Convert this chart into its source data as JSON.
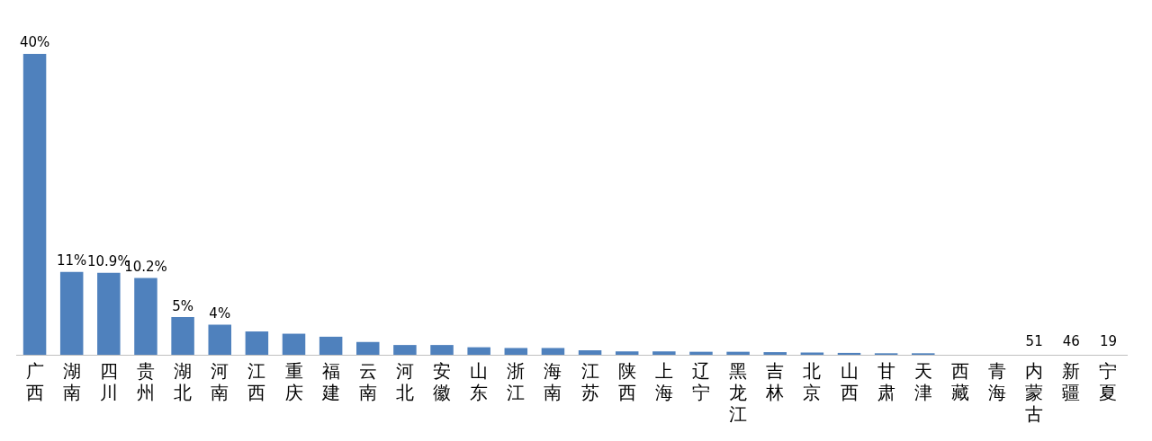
{
  "chart_data": {
    "type": "bar",
    "categories": [
      "广西",
      "湖南",
      "四川",
      "贵州",
      "湖北",
      "河南",
      "江西",
      "重庆",
      "福建",
      "云南",
      "河北",
      "安徽",
      "山东",
      "浙江",
      "海南",
      "江苏",
      "陕西",
      "上海",
      "辽宁",
      "黑龙江",
      "吉林",
      "北京",
      "山西",
      "甘肃",
      "天津",
      "西藏",
      "青海",
      "内蒙古",
      "新疆",
      "宁夏"
    ],
    "values": [
      40,
      11,
      10.9,
      10.2,
      5,
      4,
      3.1,
      2.8,
      2.4,
      1.7,
      1.3,
      1.3,
      1.0,
      0.9,
      0.9,
      0.6,
      0.45,
      0.45,
      0.4,
      0.4,
      0.35,
      0.3,
      0.25,
      0.2,
      0.2,
      0,
      0,
      0,
      0,
      0
    ],
    "value_labels": [
      "40%",
      "11%",
      "10.9%",
      "10.2%",
      "5%",
      "4%",
      null,
      null,
      null,
      null,
      null,
      null,
      null,
      null,
      null,
      null,
      null,
      null,
      null,
      null,
      null,
      null,
      null,
      null,
      null,
      null,
      null,
      null,
      null,
      null
    ],
    "color": "#4f81bd",
    "annotations": [
      {
        "text": "51",
        "x": "内蒙古",
        "y": 0
      },
      {
        "text": "46",
        "x": "新疆",
        "y": 0
      },
      {
        "text": "19",
        "x": "宁夏",
        "y": 0
      }
    ],
    "grid": false,
    "legend": false
  }
}
